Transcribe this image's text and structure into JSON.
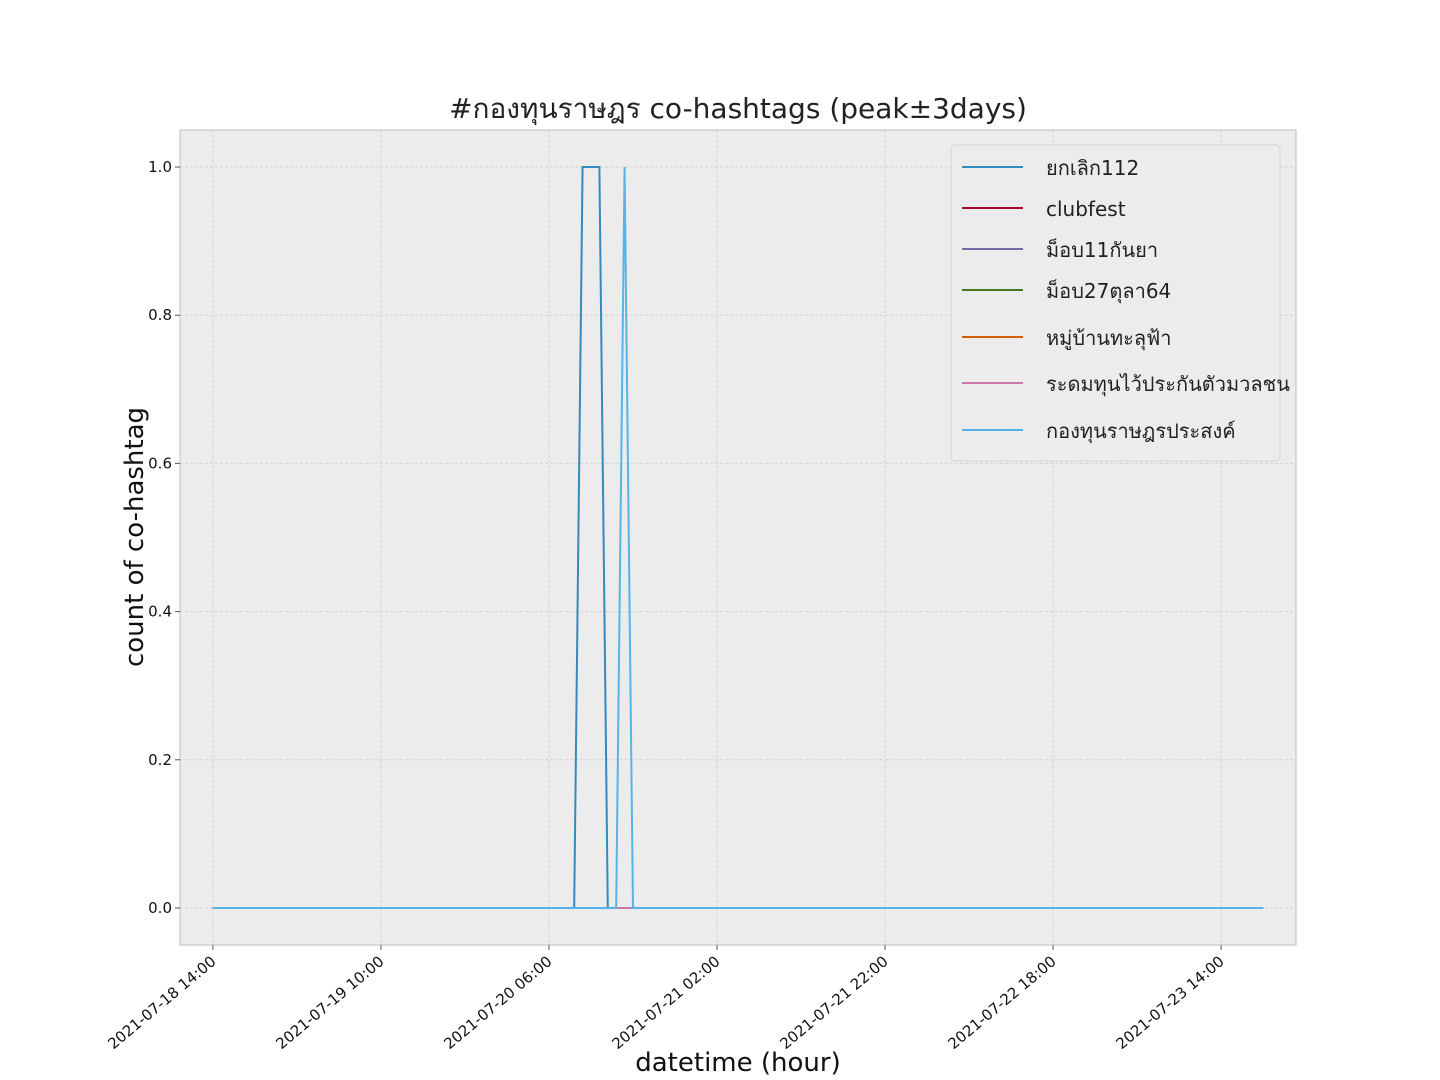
{
  "chart_data": {
    "type": "line",
    "title": "#กองทุนราษฎร co-hashtags (peak±3days)",
    "xlabel": "datetime (hour)",
    "ylabel": "count of co-hashtag",
    "x_start": "2021-07-18 14:00",
    "x_end": "2021-07-23 19:00",
    "x_step_hours": 1,
    "xlim": [
      "2021-07-18 10:05",
      "2021-07-23 22:55"
    ],
    "ylim": [
      -0.05,
      1.05
    ],
    "xticks": [
      "2021-07-18 14:00",
      "2021-07-19 10:00",
      "2021-07-20 06:00",
      "2021-07-21 02:00",
      "2021-07-21 22:00",
      "2021-07-22 18:00",
      "2021-07-23 14:00"
    ],
    "yticks": [
      0.0,
      0.2,
      0.4,
      0.6,
      0.8,
      1.0
    ],
    "ytick_labels": [
      "0.0",
      "0.2",
      "0.4",
      "0.6",
      "0.8",
      "1.0"
    ],
    "grid": true,
    "legend_position": "upper right",
    "series": [
      {
        "name": "ยกเลิก112",
        "color": "#348abd",
        "points": [
          [
            "2021-07-20 09:00",
            0
          ],
          [
            "2021-07-20 10:00",
            1
          ],
          [
            "2021-07-20 11:00",
            1
          ],
          [
            "2021-07-20 12:00",
            1
          ],
          [
            "2021-07-20 13:00",
            0
          ]
        ]
      },
      {
        "name": "clubfest",
        "color": "#a60628",
        "points": []
      },
      {
        "name": "ม็อบ11กันยา",
        "color": "#7a68a6",
        "points": []
      },
      {
        "name": "ม็อบ27ตุลา64",
        "color": "#467821",
        "points": []
      },
      {
        "name": "หมู่บ้านทะลุฟ้า",
        "color": "#d55e00",
        "points": []
      },
      {
        "name": "ระดมทุนไว้ประกันตัวมวลชน",
        "color": "#cc79a7",
        "points": []
      },
      {
        "name": "กองทุนราษฎรประสงค์",
        "color": "#56b4e9",
        "points": [
          [
            "2021-07-20 14:00",
            0
          ],
          [
            "2021-07-20 15:00",
            1
          ],
          [
            "2021-07-20 16:00",
            0
          ]
        ]
      }
    ]
  }
}
